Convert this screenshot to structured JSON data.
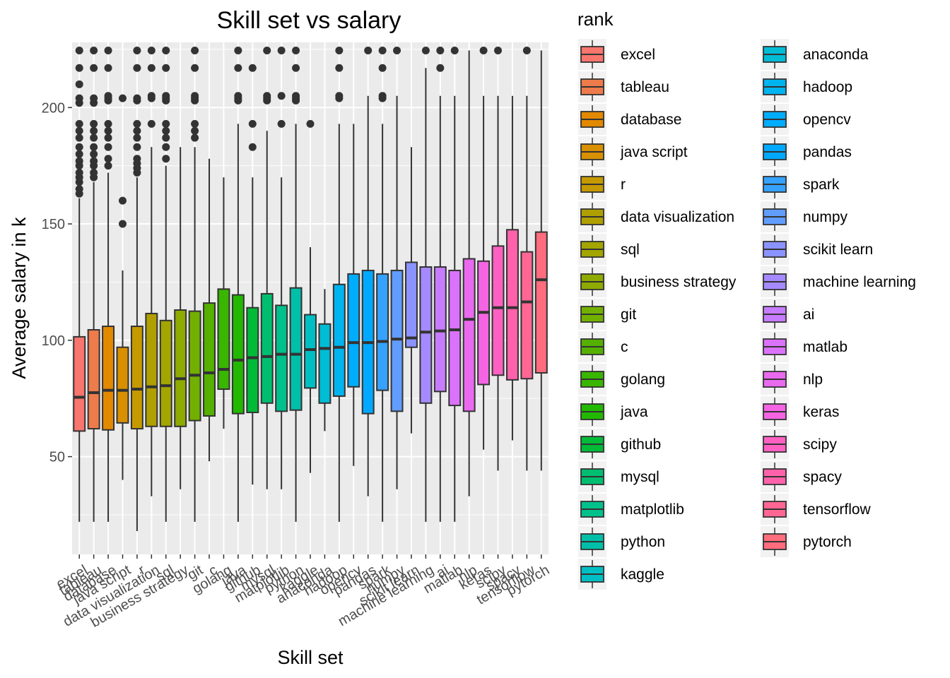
{
  "chart_data": {
    "type": "box",
    "title": "Skill set vs salary",
    "xlabel": "Skill set",
    "ylabel": "Average salary in k",
    "ylim": [
      8,
      228
    ],
    "yticks": [
      50,
      100,
      150,
      200
    ],
    "grid": true,
    "legend": {
      "title": "rank",
      "position": "right",
      "columns": 2
    },
    "categories": [
      "excel",
      "tableau",
      "database",
      "java script",
      "r",
      "data visualization",
      "sql",
      "business strategy",
      "git",
      "c",
      "golang",
      "java",
      "github",
      "mysql",
      "matplotlib",
      "python",
      "kaggle",
      "anaconda",
      "hadoop",
      "opencv",
      "pandas",
      "spark",
      "numpy",
      "scikit learn",
      "machine learning",
      "ai",
      "matlab",
      "nlp",
      "keras",
      "scipy",
      "spacy",
      "tensorflow",
      "pytorch"
    ],
    "legend_labels": [
      "excel",
      "tableau",
      "database",
      "java script",
      "r",
      "data visualization",
      "sql",
      "business strategy",
      "git",
      " c",
      " golang",
      "java",
      "github",
      "mysql",
      "matplotlib",
      "python",
      "kaggle",
      "anaconda",
      "hadoop",
      "opencv",
      "pandas",
      "spark",
      "numpy",
      "scikit learn",
      "machine learning",
      " ai",
      "matlab",
      "nlp",
      "keras",
      "scipy",
      "spacy",
      "tensorflow",
      "pytorch"
    ],
    "colors": [
      "#F8766D",
      "#EE7B4B",
      "#E38900",
      "#D89000",
      "#C59900",
      "#B09F00",
      "#A3A500",
      "#8FAA00",
      "#72B000",
      "#55B000",
      "#39B600",
      "#22B800",
      "#00BA38",
      "#00BE70",
      "#00C08B",
      "#00BFA8",
      "#00BFC4",
      "#00BCD5",
      "#00B4EF",
      "#00ACFC",
      "#00A9FF",
      "#35A2FF",
      "#619CFF",
      "#8B93FF",
      "#A58AFF",
      "#C77CFF",
      "#DB72FB",
      "#E96AEE",
      "#F564E3",
      "#FF61C3",
      "#FF62AB",
      "#FF6694",
      "#FF6C7D"
    ],
    "boxes": [
      {
        "whisker_low": 22,
        "q1": 61,
        "median": 75.5,
        "q3": 101.5,
        "whisker_high": 161,
        "outliers": [
          163,
          165,
          168,
          170,
          172,
          175,
          177,
          180,
          183,
          187,
          190,
          193,
          202,
          204,
          210,
          217,
          224.5
        ]
      },
      {
        "whisker_low": 22,
        "q1": 62,
        "median": 77.5,
        "q3": 104.5,
        "whisker_high": 168,
        "outliers": [
          170,
          172,
          175,
          177,
          180,
          183,
          187,
          190,
          193,
          202,
          204,
          217,
          224.5
        ]
      },
      {
        "whisker_low": 22,
        "q1": 61.5,
        "median": 78.5,
        "q3": 106,
        "whisker_high": 172,
        "outliers": [
          175,
          178,
          183,
          187,
          190,
          193,
          203,
          204,
          205,
          217,
          224.5
        ]
      },
      {
        "whisker_low": 40,
        "q1": 64.5,
        "median": 78.5,
        "q3": 97,
        "whisker_high": 130,
        "outliers": [
          150,
          160,
          204
        ]
      },
      {
        "whisker_low": 18,
        "q1": 62,
        "median": 79,
        "q3": 106,
        "whisker_high": 170,
        "outliers": [
          172,
          174,
          176,
          178,
          183,
          187,
          190,
          193,
          203,
          204,
          217,
          224.5
        ]
      },
      {
        "whisker_low": 33,
        "q1": 63,
        "median": 80,
        "q3": 111.5,
        "whisker_high": 183,
        "outliers": [
          193,
          204,
          205,
          217,
          224.5
        ]
      },
      {
        "whisker_low": 22,
        "q1": 63,
        "median": 80.5,
        "q3": 108.5,
        "whisker_high": 175,
        "outliers": [
          178,
          183,
          187,
          190,
          193,
          203,
          204,
          205,
          217,
          224.5
        ]
      },
      {
        "whisker_low": 36,
        "q1": 63,
        "median": 83.5,
        "q3": 113,
        "whisker_high": 183,
        "outliers": []
      },
      {
        "whisker_low": 22,
        "q1": 65.5,
        "median": 85,
        "q3": 112.5,
        "whisker_high": 183,
        "outliers": [
          187,
          190,
          193,
          203,
          204,
          205,
          217,
          224.5
        ]
      },
      {
        "whisker_low": 48,
        "q1": 67.5,
        "median": 86,
        "q3": 116,
        "whisker_high": 178,
        "outliers": []
      },
      {
        "whisker_low": 62,
        "q1": 79,
        "median": 87.5,
        "q3": 122,
        "whisker_high": 170,
        "outliers": []
      },
      {
        "whisker_low": 22,
        "q1": 68.5,
        "median": 91.5,
        "q3": 119.5,
        "whisker_high": 193,
        "outliers": [
          203,
          204,
          205,
          217,
          224.5
        ]
      },
      {
        "whisker_low": 38,
        "q1": 69,
        "median": 92.5,
        "q3": 114,
        "whisker_high": 170,
        "outliers": [
          183,
          193,
          217
        ]
      },
      {
        "whisker_low": 36,
        "q1": 73,
        "median": 93,
        "q3": 120,
        "whisker_high": 190,
        "outliers": [
          203,
          204,
          205,
          224.5
        ]
      },
      {
        "whisker_low": 36,
        "q1": 69.5,
        "median": 94,
        "q3": 115,
        "whisker_high": 170,
        "outliers": [
          193,
          205,
          224.5
        ]
      },
      {
        "whisker_low": 22,
        "q1": 70,
        "median": 94,
        "q3": 122.5,
        "whisker_high": 193,
        "outliers": [
          203,
          204,
          205,
          217,
          224.5
        ]
      },
      {
        "whisker_low": 43,
        "q1": 79.5,
        "median": 96,
        "q3": 111,
        "whisker_high": 140,
        "outliers": [
          193
        ]
      },
      {
        "whisker_low": 61,
        "q1": 73,
        "median": 96.5,
        "q3": 107,
        "whisker_high": 122,
        "outliers": []
      },
      {
        "whisker_low": 22,
        "q1": 76,
        "median": 97,
        "q3": 124,
        "whisker_high": 193,
        "outliers": [
          204,
          205,
          217,
          224.5
        ]
      },
      {
        "whisker_low": 46,
        "q1": 80,
        "median": 99,
        "q3": 128.5,
        "whisker_high": 193,
        "outliers": []
      },
      {
        "whisker_low": 33,
        "q1": 68.5,
        "median": 99,
        "q3": 130,
        "whisker_high": 205,
        "outliers": [
          224.5
        ]
      },
      {
        "whisker_low": 22,
        "q1": 78.5,
        "median": 99.5,
        "q3": 128.5,
        "whisker_high": 193,
        "outliers": [
          204,
          205,
          217,
          224.5
        ]
      },
      {
        "whisker_low": 36,
        "q1": 69.5,
        "median": 100.5,
        "q3": 130,
        "whisker_high": 205,
        "outliers": [
          224.5
        ]
      },
      {
        "whisker_low": 60,
        "q1": 97,
        "median": 101,
        "q3": 133.5,
        "whisker_high": 183,
        "outliers": []
      },
      {
        "whisker_low": 22,
        "q1": 73,
        "median": 103.5,
        "q3": 131.5,
        "whisker_high": 217,
        "outliers": [
          224.5
        ]
      },
      {
        "whisker_low": 22,
        "q1": 78,
        "median": 104,
        "q3": 131.5,
        "whisker_high": 205,
        "outliers": [
          217,
          224.5
        ]
      },
      {
        "whisker_low": 22,
        "q1": 72,
        "median": 104.5,
        "q3": 130,
        "whisker_high": 205,
        "outliers": [
          224.5
        ]
      },
      {
        "whisker_low": 33,
        "q1": 69.5,
        "median": 109,
        "q3": 135,
        "whisker_high": 224.5,
        "outliers": []
      },
      {
        "whisker_low": 53,
        "q1": 81,
        "median": 112,
        "q3": 134,
        "whisker_high": 205,
        "outliers": [
          224.5
        ]
      },
      {
        "whisker_low": 44,
        "q1": 85,
        "median": 114,
        "q3": 140.5,
        "whisker_high": 205,
        "outliers": [
          224.5
        ]
      },
      {
        "whisker_low": 57,
        "q1": 83,
        "median": 114,
        "q3": 147.5,
        "whisker_high": 205,
        "outliers": []
      },
      {
        "whisker_low": 44,
        "q1": 83.5,
        "median": 116.5,
        "q3": 138,
        "whisker_high": 205,
        "outliers": [
          224.5
        ]
      },
      {
        "whisker_low": 44,
        "q1": 86,
        "median": 126,
        "q3": 146.5,
        "whisker_high": 224.5,
        "outliers": []
      }
    ]
  }
}
